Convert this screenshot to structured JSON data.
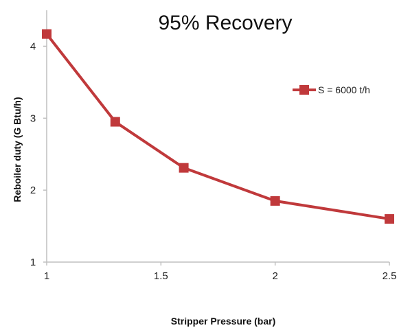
{
  "chart_data": {
    "type": "line",
    "title": "95% Recovery",
    "xlabel": "Stripper Pressure  (bar)",
    "ylabel": "Reboiler  duty   (G Btu/h)",
    "x": [
      1,
      1.3,
      1.6,
      2,
      2.5
    ],
    "series": [
      {
        "name": "S = 6000 t/h",
        "values": [
          4.17,
          2.95,
          2.31,
          1.85,
          1.6
        ]
      }
    ],
    "xlim": [
      1,
      2.5
    ],
    "ylim": [
      1,
      4.5
    ],
    "xticks": [
      1,
      1.5,
      2,
      2.5
    ],
    "xtick_labels": [
      "1",
      "1.5",
      "2",
      "2.5"
    ],
    "yticks": [
      1,
      2,
      3,
      4
    ],
    "ytick_labels": [
      "1",
      "2",
      "3",
      "4"
    ],
    "grid": false,
    "legend_position": "top-right",
    "colors": {
      "series": "#c0393b",
      "axis": "#bfbfbf"
    }
  }
}
